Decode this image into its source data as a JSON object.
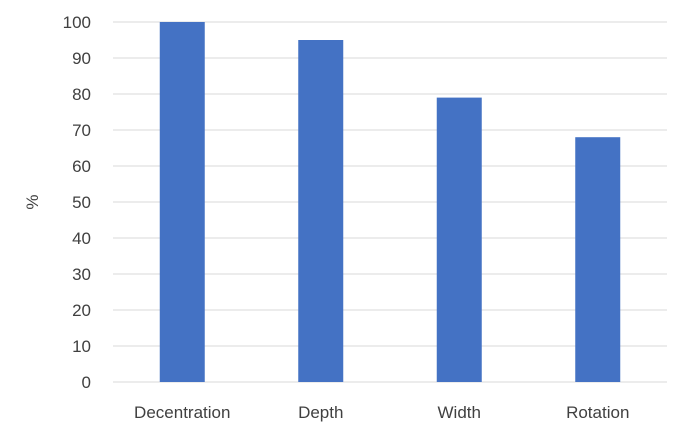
{
  "chart_data": {
    "type": "bar",
    "categories": [
      "Decentration",
      "Depth",
      "Width",
      "Rotation"
    ],
    "values": [
      100,
      95,
      79,
      68
    ],
    "title": "",
    "xlabel": "",
    "ylabel": "%",
    "ylim": [
      0,
      100
    ],
    "yticks": [
      0,
      10,
      20,
      30,
      40,
      50,
      60,
      70,
      80,
      90,
      100
    ],
    "grid": true,
    "legend": "none",
    "bar_color": "#4472C4",
    "grid_color": "#D9D9D9"
  }
}
